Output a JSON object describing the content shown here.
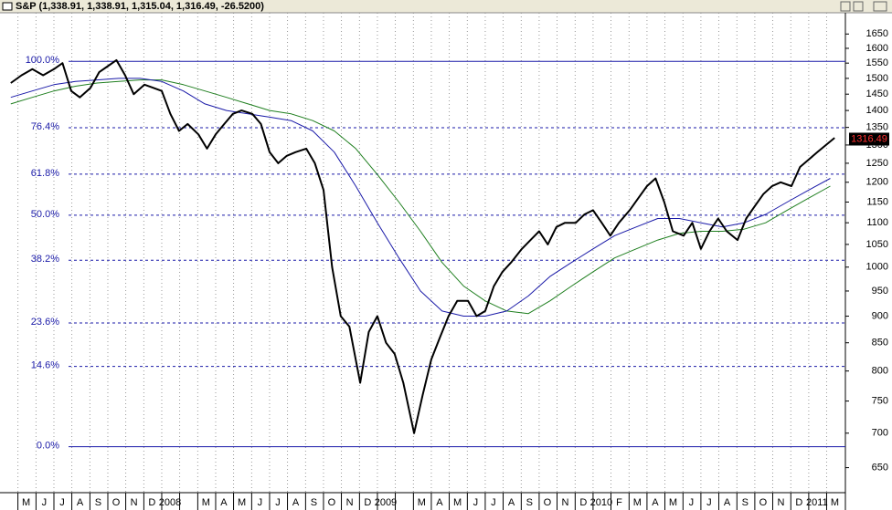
{
  "chart_data": {
    "type": "line",
    "title": "S&P (1,338.91, 1,338.91, 1,315.04, 1,316.49, -26.5200)",
    "log_scale": true,
    "grid": true,
    "ylim": [
      616,
      1727
    ],
    "yticks": [
      650,
      700,
      750,
      800,
      850,
      900,
      950,
      1000,
      1050,
      1100,
      1150,
      1200,
      1250,
      1300,
      1350,
      1400,
      1450,
      1500,
      1550,
      1600,
      1650
    ],
    "xlim": [
      2007.25,
      2011.17
    ],
    "xticks": [
      {
        "value": 2007.333,
        "label": "M"
      },
      {
        "value": 2007.417,
        "label": "J"
      },
      {
        "value": 2007.5,
        "label": "J"
      },
      {
        "value": 2007.583,
        "label": "A"
      },
      {
        "value": 2007.667,
        "label": "S"
      },
      {
        "value": 2007.75,
        "label": "O"
      },
      {
        "value": 2007.833,
        "label": "N"
      },
      {
        "value": 2007.917,
        "label": "D"
      },
      {
        "value": 2008.0,
        "label": "2008"
      },
      {
        "value": 2008.083,
        "label": null
      },
      {
        "value": 2008.167,
        "label": "M"
      },
      {
        "value": 2008.25,
        "label": "A"
      },
      {
        "value": 2008.333,
        "label": "M"
      },
      {
        "value": 2008.417,
        "label": "J"
      },
      {
        "value": 2008.5,
        "label": "J"
      },
      {
        "value": 2008.583,
        "label": "A"
      },
      {
        "value": 2008.667,
        "label": "S"
      },
      {
        "value": 2008.75,
        "label": "O"
      },
      {
        "value": 2008.833,
        "label": "N"
      },
      {
        "value": 2008.917,
        "label": "D"
      },
      {
        "value": 2009.0,
        "label": "2009"
      },
      {
        "value": 2009.083,
        "label": null
      },
      {
        "value": 2009.167,
        "label": "M"
      },
      {
        "value": 2009.25,
        "label": "A"
      },
      {
        "value": 2009.333,
        "label": "M"
      },
      {
        "value": 2009.417,
        "label": "J"
      },
      {
        "value": 2009.5,
        "label": "J"
      },
      {
        "value": 2009.583,
        "label": "A"
      },
      {
        "value": 2009.667,
        "label": "S"
      },
      {
        "value": 2009.75,
        "label": "O"
      },
      {
        "value": 2009.833,
        "label": "N"
      },
      {
        "value": 2009.917,
        "label": "D"
      },
      {
        "value": 2010.0,
        "label": "2010"
      },
      {
        "value": 2010.083,
        "label": "F"
      },
      {
        "value": 2010.167,
        "label": "M"
      },
      {
        "value": 2010.25,
        "label": "A"
      },
      {
        "value": 2010.333,
        "label": "M"
      },
      {
        "value": 2010.417,
        "label": "J"
      },
      {
        "value": 2010.5,
        "label": "J"
      },
      {
        "value": 2010.583,
        "label": "A"
      },
      {
        "value": 2010.667,
        "label": "S"
      },
      {
        "value": 2010.75,
        "label": "O"
      },
      {
        "value": 2010.833,
        "label": "N"
      },
      {
        "value": 2010.917,
        "label": "D"
      },
      {
        "value": 2011.0,
        "label": "2011"
      },
      {
        "value": 2011.083,
        "label": "M"
      }
    ],
    "series": [
      {
        "color": "#000000",
        "width": 2,
        "x": [
          2007.3,
          2007.35,
          2007.4,
          2007.45,
          2007.5,
          2007.54,
          2007.58,
          2007.62,
          2007.67,
          2007.71,
          2007.75,
          2007.79,
          2007.83,
          2007.87,
          2007.92,
          2007.96,
          2008.0,
          2008.04,
          2008.08,
          2008.12,
          2008.17,
          2008.21,
          2008.25,
          2008.29,
          2008.33,
          2008.37,
          2008.42,
          2008.46,
          2008.5,
          2008.54,
          2008.58,
          2008.62,
          2008.67,
          2008.71,
          2008.75,
          2008.79,
          2008.83,
          2008.87,
          2008.92,
          2008.96,
          2009.0,
          2009.04,
          2009.08,
          2009.12,
          2009.17,
          2009.21,
          2009.25,
          2009.29,
          2009.33,
          2009.37,
          2009.42,
          2009.46,
          2009.5,
          2009.54,
          2009.58,
          2009.62,
          2009.67,
          2009.71,
          2009.75,
          2009.79,
          2009.83,
          2009.87,
          2009.92,
          2009.96,
          2010.0,
          2010.04,
          2010.08,
          2010.12,
          2010.17,
          2010.21,
          2010.25,
          2010.29,
          2010.33,
          2010.37,
          2010.42,
          2010.46,
          2010.5,
          2010.54,
          2010.58,
          2010.62,
          2010.67,
          2010.71,
          2010.75,
          2010.79,
          2010.83,
          2010.87,
          2010.92,
          2010.96,
          2011.0,
          2011.04,
          2011.08,
          2011.12
        ],
        "values": [
          1485,
          1510,
          1530,
          1510,
          1530,
          1550,
          1460,
          1440,
          1470,
          1520,
          1540,
          1560,
          1510,
          1450,
          1480,
          1470,
          1460,
          1390,
          1340,
          1360,
          1330,
          1290,
          1330,
          1360,
          1390,
          1400,
          1390,
          1360,
          1280,
          1250,
          1270,
          1280,
          1290,
          1250,
          1180,
          1000,
          900,
          880,
          780,
          870,
          900,
          850,
          830,
          780,
          700,
          760,
          820,
          860,
          900,
          930,
          930,
          900,
          910,
          960,
          990,
          1010,
          1040,
          1060,
          1080,
          1050,
          1090,
          1100,
          1100,
          1120,
          1130,
          1100,
          1070,
          1100,
          1130,
          1160,
          1190,
          1210,
          1150,
          1080,
          1070,
          1100,
          1040,
          1080,
          1110,
          1080,
          1060,
          1110,
          1140,
          1170,
          1190,
          1200,
          1190,
          1240,
          1260,
          1280,
          1300,
          1320
        ]
      },
      {
        "color": "#1a1aa8",
        "width": 1,
        "x": [
          2007.3,
          2007.4,
          2007.5,
          2007.6,
          2007.7,
          2007.8,
          2007.9,
          2008.0,
          2008.1,
          2008.2,
          2008.3,
          2008.4,
          2008.5,
          2008.6,
          2008.7,
          2008.8,
          2008.9,
          2009.0,
          2009.1,
          2009.2,
          2009.3,
          2009.4,
          2009.5,
          2009.6,
          2009.7,
          2009.8,
          2009.9,
          2010.0,
          2010.1,
          2010.2,
          2010.3,
          2010.4,
          2010.5,
          2010.6,
          2010.7,
          2010.8,
          2010.9,
          2011.0,
          2011.1
        ],
        "values": [
          1440,
          1460,
          1480,
          1490,
          1495,
          1500,
          1500,
          1490,
          1460,
          1420,
          1400,
          1390,
          1380,
          1370,
          1340,
          1280,
          1190,
          1100,
          1020,
          950,
          910,
          900,
          900,
          910,
          940,
          980,
          1010,
          1040,
          1070,
          1090,
          1110,
          1110,
          1100,
          1090,
          1100,
          1120,
          1150,
          1180,
          1210
        ]
      },
      {
        "color": "#1f7f1f",
        "width": 1,
        "x": [
          2007.3,
          2007.4,
          2007.5,
          2007.6,
          2007.7,
          2007.8,
          2007.9,
          2008.0,
          2008.1,
          2008.2,
          2008.3,
          2008.4,
          2008.5,
          2008.6,
          2008.7,
          2008.8,
          2008.9,
          2009.0,
          2009.1,
          2009.2,
          2009.3,
          2009.4,
          2009.5,
          2009.6,
          2009.7,
          2009.8,
          2009.9,
          2010.0,
          2010.1,
          2010.2,
          2010.3,
          2010.4,
          2010.5,
          2010.6,
          2010.7,
          2010.8,
          2010.9,
          2011.0,
          2011.1
        ],
        "values": [
          1420,
          1440,
          1460,
          1475,
          1485,
          1490,
          1495,
          1495,
          1480,
          1460,
          1440,
          1420,
          1400,
          1390,
          1370,
          1340,
          1290,
          1220,
          1150,
          1080,
          1010,
          960,
          930,
          910,
          905,
          930,
          960,
          990,
          1020,
          1040,
          1060,
          1075,
          1080,
          1080,
          1085,
          1100,
          1130,
          1160,
          1190
        ]
      }
    ],
    "fib_color": "#1a1aa8",
    "fib_levels": [
      {
        "ratio": 100.0,
        "label": "100.0%",
        "price": 1556
      },
      {
        "ratio": 76.4,
        "label": "76.4%",
        "price": 1349
      },
      {
        "ratio": 61.8,
        "label": "61.8%",
        "price": 1221
      },
      {
        "ratio": 50.0,
        "label": "50.0%",
        "price": 1118
      },
      {
        "ratio": 38.2,
        "label": "38.2%",
        "price": 1015
      },
      {
        "ratio": 23.6,
        "label": "23.6%",
        "price": 887
      },
      {
        "ratio": 14.6,
        "label": "14.6%",
        "price": 808
      },
      {
        "ratio": 0.0,
        "label": "0.0%",
        "price": 680
      }
    ],
    "last_price": {
      "value": 1316.49,
      "label": "1316.49"
    }
  }
}
